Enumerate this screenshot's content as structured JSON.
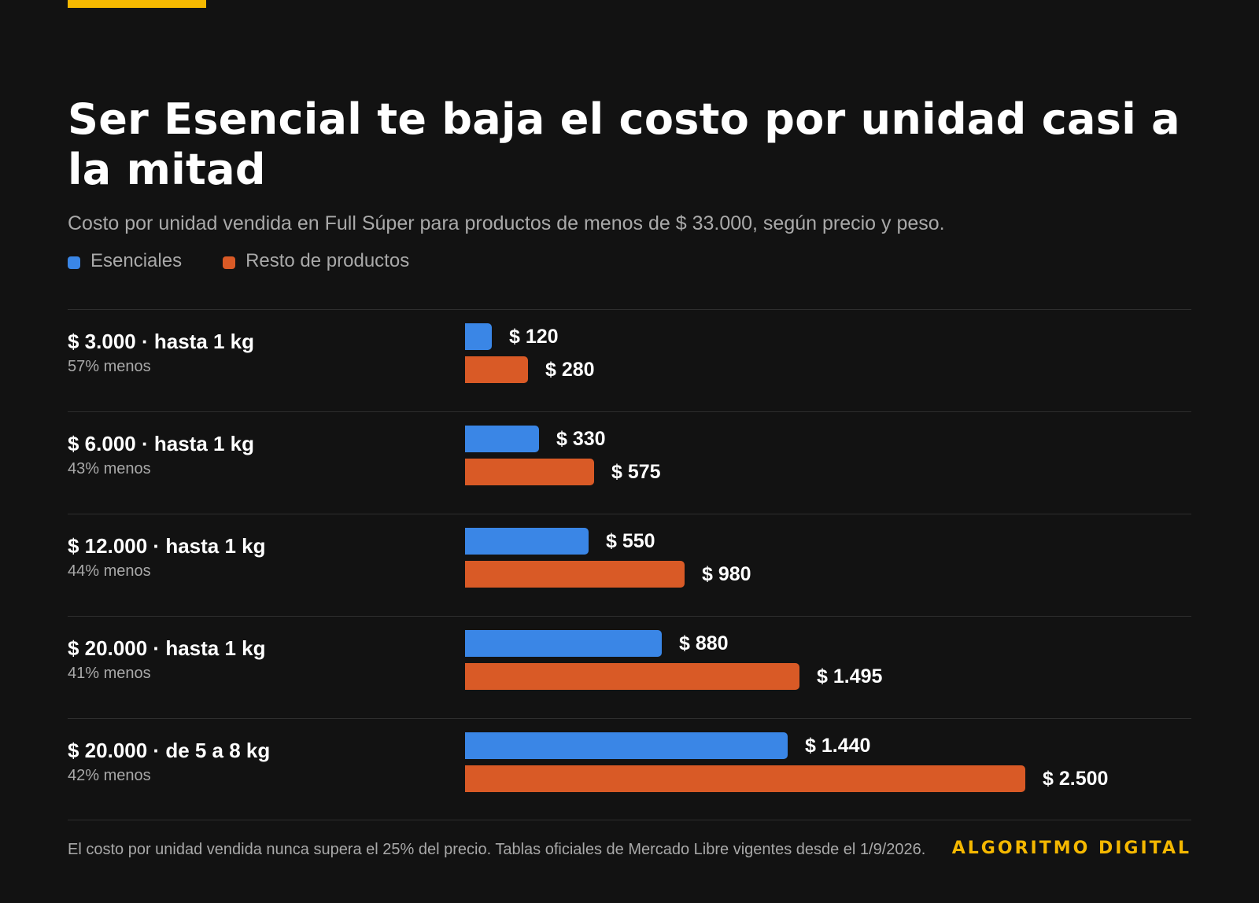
{
  "colors": {
    "accent": "#f5b800",
    "esenciales": "#3a86e6",
    "resto": "#d95a26"
  },
  "header": {
    "title": "Ser Esencial te baja el costo por unidad casi a la mitad",
    "subtitle": "Costo por unidad vendida en Full Súper para productos de menos de $ 33.000, según precio y peso."
  },
  "legend": {
    "esenciales": "Esenciales",
    "resto": "Resto de productos"
  },
  "chart_data": {
    "type": "bar",
    "orientation": "horizontal",
    "title": "Ser Esencial te baja el costo por unidad casi a la mitad",
    "subtitle": "Costo por unidad vendida en Full Súper para productos de menos de $ 33.000, según precio y peso.",
    "categories": [
      "$ 3.000 · hasta 1 kg",
      "$ 6.000 · hasta 1 kg",
      "$ 12.000 · hasta 1 kg",
      "$ 20.000 · hasta 1 kg",
      "$ 20.000 · de 5 a 8 kg"
    ],
    "category_notes": [
      "57% menos",
      "43% menos",
      "44% menos",
      "41% menos",
      "42% menos"
    ],
    "series": [
      {
        "name": "Esenciales",
        "color": "#3a86e6",
        "values": [
          120,
          330,
          550,
          880,
          1440
        ],
        "labels": [
          "$ 120",
          "$ 330",
          "$ 550",
          "$ 880",
          "$ 1.440"
        ]
      },
      {
        "name": "Resto de productos",
        "color": "#d95a26",
        "values": [
          280,
          575,
          980,
          1495,
          2500
        ],
        "labels": [
          "$ 280",
          "$ 575",
          "$ 980",
          "$ 1.495",
          "$ 2.500"
        ]
      }
    ],
    "xlim": [
      0,
      3520
    ],
    "grid": false,
    "legend_position": "top-left"
  },
  "footer": {
    "note": "El costo por unidad vendida nunca supera el 25% del precio. Tablas oficiales de Mercado Libre vigentes desde el 1/9/2026.",
    "brand": "ALGORITMO DIGITAL"
  }
}
